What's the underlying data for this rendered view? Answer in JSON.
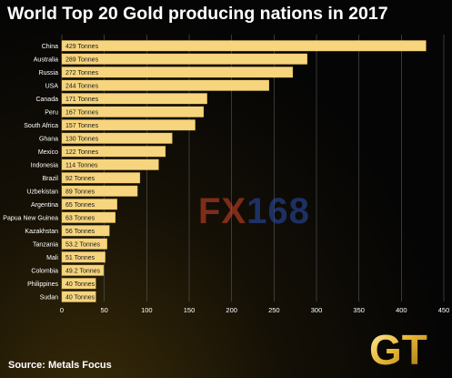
{
  "chart_data": {
    "type": "bar",
    "orientation": "horizontal",
    "title": "World Top 20 Gold producing nations in 2017",
    "categories": [
      "China",
      "Australia",
      "Russia",
      "USA",
      "Canada",
      "Peru",
      "South Africa",
      "Ghana",
      "Mexico",
      "Indonesia",
      "Brazil",
      "Uzbekistan",
      "Argentina",
      "Papua New Guinea",
      "Kazakhstan",
      "Tanzania",
      "Mali",
      "Colombia",
      "Philippines",
      "Sudan"
    ],
    "values": [
      429,
      289,
      272,
      244,
      171,
      167,
      157,
      130,
      122,
      114,
      92,
      89,
      65,
      63,
      56,
      53.2,
      51,
      49.2,
      40,
      40
    ],
    "data_labels": [
      "429 Tonnes",
      "289 Tonnes",
      "272 Tonnes",
      "244 Tonnes",
      "171 Tonnes",
      "167 Tonnes",
      "157 Tonnes",
      "130 Tonnes",
      "122 Tonnes",
      "114 Tonnes",
      "92 Tonnes",
      "89 Tonnes",
      "65 Tonnes",
      "63 Tonnes",
      "56 Tonnes",
      "53.2 Tonnes",
      "51 Tonnes",
      "49.2 Tonnes",
      "40 Tonnes",
      "40 Tonnes"
    ],
    "xlim": [
      0,
      450
    ],
    "xticks": [
      0,
      50,
      100,
      150,
      200,
      250,
      300,
      350,
      400,
      450
    ],
    "xlabel": "",
    "ylabel": "",
    "grid": true,
    "source": "Source: Metals Focus"
  },
  "watermark": {
    "part1": "FX",
    "part2": "168"
  },
  "logo": {
    "text": "GT"
  },
  "colors": {
    "bar": "#f6d57e",
    "bar_edge": "#e0b855",
    "label_text": "#1a1a1a",
    "grid": "#5a5a5a",
    "axis_text": "#ffffff"
  }
}
